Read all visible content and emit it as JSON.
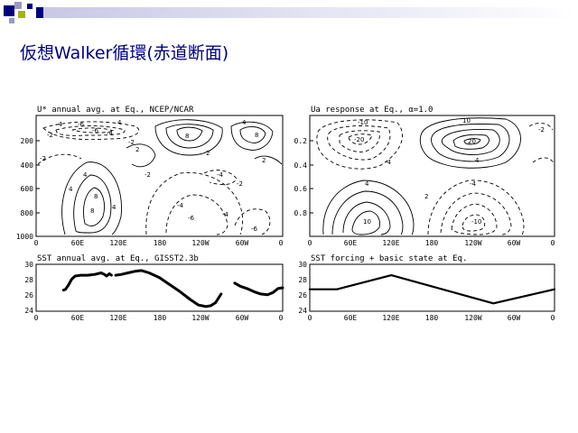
{
  "slide": {
    "title": "仮想Walker循環(赤道断面)",
    "accent_colors": [
      "#000080",
      "#9999cc",
      "#a8b400"
    ]
  },
  "chart_data": [
    {
      "type": "contour",
      "title": "U* annual avg. at Eq., NCEP/NCAR",
      "x_ticks": [
        "0",
        "60E",
        "120E",
        "180",
        "120W",
        "60W",
        "0"
      ],
      "y_ticks": [
        "200",
        "400",
        "600",
        "800",
        "1000"
      ],
      "contour_labels": [
        "-2",
        "-4",
        "-6",
        "4",
        "-2",
        "-4",
        "-6",
        "8",
        "8",
        "4",
        "2",
        "4",
        "-2",
        "-2",
        "-4",
        "-6",
        "2",
        "8",
        "4",
        "2",
        "-4",
        "-2",
        "-6",
        "4",
        "8",
        "-4"
      ]
    },
    {
      "type": "contour",
      "title": "Ua response at Eq., α=1.0",
      "x_ticks": [
        "0",
        "60E",
        "120E",
        "180",
        "120W",
        "60W",
        "0"
      ],
      "y_ticks": [
        "0.2",
        "0.4",
        "0.6",
        "0.8"
      ],
      "contour_labels": [
        "-10",
        "-20",
        "10",
        "20",
        "4",
        "-4",
        "10",
        "-4",
        "-10",
        "4",
        "-2",
        "2"
      ]
    },
    {
      "type": "line",
      "title": "SST annual avg. at Eq., GISST2.3b",
      "x_ticks": [
        "0",
        "60E",
        "120E",
        "180",
        "120W",
        "60W",
        "0"
      ],
      "y_ticks": [
        "30",
        "28",
        "26",
        "24"
      ],
      "xlim": [
        0,
        360
      ],
      "ylim": [
        24,
        30
      ],
      "series": [
        {
          "x": [
            40,
            43,
            47,
            52,
            57,
            65,
            75,
            85,
            95,
            100,
            103,
            107,
            110
          ],
          "y": [
            26.7,
            26.8,
            27.3,
            28.1,
            28.5,
            28.6,
            28.6,
            28.7,
            28.9,
            28.7,
            28.5,
            28.8,
            28.6
          ]
        },
        {
          "x": [
            116,
            124,
            134,
            144,
            154,
            165,
            180,
            195,
            210,
            225,
            237,
            248,
            255,
            262,
            270
          ],
          "y": [
            28.6,
            28.7,
            28.9,
            29.1,
            29.2,
            28.9,
            28.3,
            27.4,
            26.5,
            25.5,
            24.8,
            24.6,
            24.7,
            25.1,
            26.2
          ]
        },
        {
          "x": [
            290,
            298,
            308,
            318,
            328,
            338,
            346,
            353,
            360
          ],
          "y": [
            27.6,
            27.2,
            26.9,
            26.5,
            26.2,
            26.1,
            26.4,
            26.9,
            27.0
          ]
        }
      ]
    },
    {
      "type": "line",
      "title": "SST forcing + basic state at Eq.",
      "x_ticks": [
        "0",
        "60E",
        "120E",
        "180",
        "120W",
        "60W",
        "0"
      ],
      "y_ticks": [
        "30",
        "28",
        "26",
        "24"
      ],
      "xlim": [
        0,
        360
      ],
      "ylim": [
        24,
        30
      ],
      "series": [
        {
          "x": [
            0,
            40,
            120,
            270,
            360
          ],
          "y": [
            26.8,
            26.8,
            28.6,
            25.0,
            26.8
          ]
        }
      ]
    }
  ]
}
